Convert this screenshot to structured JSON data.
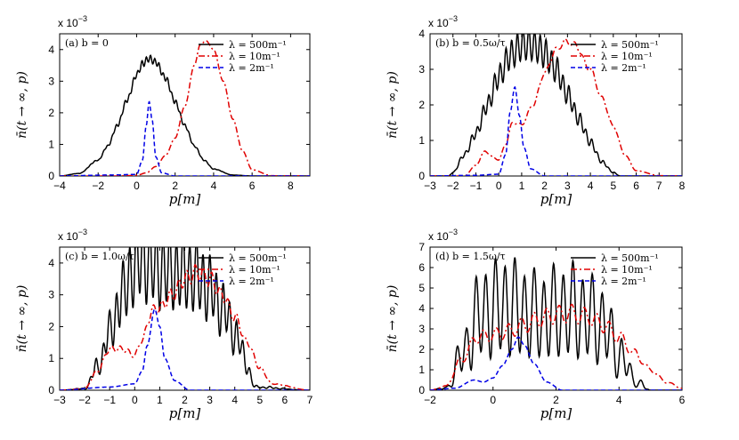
{
  "figure": {
    "xlabel": "p[m]",
    "ylabel": "n̄(t → ∞, p)",
    "scale_label": "x 10",
    "scale_exponent": "−3"
  },
  "legend_labels": [
    "λ = 500m⁻¹",
    "λ = 10m⁻¹",
    "λ = 2m⁻¹"
  ],
  "colors": {
    "black": "#000000",
    "red": "#e00000",
    "blue": "#0000e6"
  },
  "chart_data": [
    {
      "type": "line",
      "panel_label": "(a) b = 0",
      "xlim": [
        -4,
        9
      ],
      "ylim": [
        0,
        4.5
      ],
      "xticks": [
        -4,
        -2,
        0,
        2,
        4,
        6,
        8
      ],
      "yticks": [
        0,
        1,
        2,
        3,
        4
      ],
      "xticklabels": [
        "−4",
        "−2",
        "0",
        "2",
        "4",
        "6",
        "8"
      ],
      "yticklabels": [
        "0",
        "1",
        "2",
        "3",
        "4"
      ],
      "y_multiplier": "1e-3",
      "series": [
        {
          "name": "λ = 500m⁻¹",
          "style": "solid",
          "color": "#000000",
          "x": [
            -4,
            -3,
            -2,
            -1.5,
            -1,
            -0.5,
            0,
            0.3,
            0.65,
            1,
            1.5,
            2,
            2.5,
            3,
            3.5,
            4,
            5,
            6,
            9
          ],
          "y": [
            0,
            0.08,
            0.5,
            0.95,
            1.6,
            2.4,
            3.2,
            3.55,
            3.72,
            3.6,
            3.1,
            2.35,
            1.6,
            0.95,
            0.5,
            0.22,
            0.03,
            0,
            0
          ]
        },
        {
          "name": "λ = 10m⁻¹",
          "style": "dashdot",
          "color": "#e00000",
          "x": [
            -4,
            -1,
            0,
            0.5,
            1,
            1.5,
            2,
            2.5,
            3,
            3.3,
            3.6,
            4,
            4.5,
            5,
            5.5,
            6,
            7,
            9
          ],
          "y": [
            0,
            0,
            0.02,
            0.1,
            0.3,
            0.65,
            1.2,
            2.2,
            3.5,
            4.15,
            4.28,
            4.0,
            3.0,
            1.8,
            0.8,
            0.2,
            0.01,
            0
          ]
        },
        {
          "name": "λ = 2m⁻¹",
          "style": "dashed",
          "color": "#0000e6",
          "x": [
            -4,
            -1.5,
            0,
            0.3,
            0.5,
            0.65,
            0.8,
            1,
            1.3,
            2,
            9
          ],
          "y": [
            0,
            0.03,
            0.05,
            0.5,
            1.6,
            2.35,
            1.8,
            0.6,
            0.1,
            0,
            0
          ]
        }
      ]
    },
    {
      "type": "line",
      "panel_label": "(b) b = 0.5ω/τ",
      "xlim": [
        -3,
        8
      ],
      "ylim": [
        0,
        4.0
      ],
      "xticks": [
        -3,
        -2,
        -1,
        0,
        1,
        2,
        3,
        4,
        5,
        6,
        7,
        8
      ],
      "yticks": [
        0,
        1,
        2,
        3,
        4
      ],
      "xticklabels": [
        "−3",
        "−2",
        "−1",
        "0",
        "1",
        "2",
        "3",
        "4",
        "5",
        "6",
        "7",
        "8"
      ],
      "yticklabels": [
        "0",
        "1",
        "2",
        "3",
        "4"
      ],
      "y_multiplier": "1e-3",
      "series": [
        {
          "name": "λ = 500m⁻¹",
          "style": "solid",
          "color": "#000000",
          "x": [
            -3,
            -2.2,
            -2,
            -1.5,
            -1,
            -0.5,
            0,
            0.5,
            1,
            1.3,
            1.6,
            2,
            2.5,
            3,
            3.5,
            4,
            4.5,
            5,
            5.3,
            8
          ],
          "y": [
            0,
            0,
            0.1,
            0.6,
            1.2,
            2.0,
            2.8,
            3.4,
            3.68,
            3.72,
            3.65,
            3.45,
            3.0,
            2.3,
            1.6,
            0.95,
            0.4,
            0.1,
            0,
            0
          ]
        },
        {
          "name": "λ = 10m⁻¹",
          "style": "dashdot",
          "color": "#e00000",
          "x": [
            -3,
            -1.5,
            -1,
            -0.6,
            -0.3,
            0,
            0.3,
            0.6,
            1,
            1.5,
            2,
            2.5,
            2.9,
            3.3,
            4,
            4.5,
            5,
            5.5,
            6,
            7,
            8
          ],
          "y": [
            0,
            0,
            0.3,
            0.7,
            0.55,
            0.45,
            0.9,
            1.5,
            1.45,
            2.0,
            2.9,
            3.55,
            3.78,
            3.7,
            3.0,
            2.2,
            1.4,
            0.6,
            0.15,
            0.01,
            0
          ]
        },
        {
          "name": "λ = 2m⁻¹",
          "style": "dashed",
          "color": "#0000e6",
          "x": [
            -3,
            -1,
            0,
            0.3,
            0.5,
            0.7,
            0.9,
            1.1,
            1.4,
            2,
            8
          ],
          "y": [
            0,
            0.02,
            0.05,
            0.6,
            1.8,
            2.5,
            1.7,
            0.8,
            0.2,
            0,
            0
          ]
        }
      ]
    },
    {
      "type": "line",
      "panel_label": "(c) b = 1.0ω/τ",
      "xlim": [
        -3,
        7
      ],
      "ylim": [
        0,
        4.5
      ],
      "xticks": [
        -3,
        -2,
        -1,
        0,
        1,
        2,
        3,
        4,
        5,
        6,
        7
      ],
      "yticks": [
        0,
        1,
        2,
        3,
        4
      ],
      "xticklabels": [
        "−3",
        "−2",
        "−1",
        "0",
        "1",
        "2",
        "3",
        "4",
        "5",
        "6",
        "7"
      ],
      "yticklabels": [
        "0",
        "1",
        "2",
        "3",
        "4"
      ],
      "y_multiplier": "1e-3",
      "series": [
        {
          "name": "λ = 500m⁻¹",
          "style": "solid",
          "color": "#000000",
          "x": [
            -3,
            -2,
            -1.5,
            -1,
            -0.5,
            0,
            0.3,
            0.7,
            1,
            1.5,
            2,
            2.5,
            3,
            3.5,
            4,
            4.5,
            4.8,
            7
          ],
          "y": [
            0,
            0.05,
            0.7,
            1.8,
            3.0,
            3.9,
            4.2,
            3.9,
            3.8,
            3.75,
            3.7,
            3.55,
            3.2,
            2.6,
            1.8,
            0.8,
            0.1,
            0
          ]
        },
        {
          "name": "λ = 10m⁻¹",
          "style": "dashdot",
          "color": "#e00000",
          "x": [
            -3,
            -2,
            -1.5,
            -1,
            -0.5,
            0,
            0.3,
            0.7,
            1,
            1.5,
            2,
            2.5,
            3,
            3.5,
            4,
            4.5,
            5,
            5.5,
            7
          ],
          "y": [
            0,
            0.05,
            0.6,
            1.3,
            1.3,
            1.1,
            1.6,
            2.5,
            2.6,
            3.0,
            3.5,
            3.7,
            3.5,
            3.0,
            2.3,
            1.5,
            0.7,
            0.2,
            0
          ]
        },
        {
          "name": "λ = 2m⁻¹",
          "style": "dashed",
          "color": "#0000e6",
          "x": [
            -3,
            -1,
            0,
            0.3,
            0.5,
            0.8,
            1.0,
            1.2,
            1.6,
            2.2,
            7
          ],
          "y": [
            0,
            0.1,
            0.2,
            0.6,
            1.4,
            2.55,
            2.0,
            1.0,
            0.3,
            0,
            0
          ]
        }
      ]
    },
    {
      "type": "line",
      "panel_label": "(d) b = 1.5ω/τ",
      "xlim": [
        -2,
        6
      ],
      "ylim": [
        0,
        7
      ],
      "xticks": [
        -2,
        0,
        2,
        4,
        6
      ],
      "yticks": [
        0,
        1,
        2,
        3,
        4,
        5,
        6,
        7
      ],
      "xticklabels": [
        "−2",
        "0",
        "2",
        "4",
        "6"
      ],
      "yticklabels": [
        "0",
        "1",
        "2",
        "3",
        "4",
        "5",
        "6",
        "7"
      ],
      "y_multiplier": "1e-3",
      "series": [
        {
          "name": "λ = 500m⁻¹",
          "style": "solid",
          "color": "#000000",
          "x": [
            -2,
            -1.5,
            -1,
            -0.5,
            0,
            0.5,
            1,
            1.5,
            2,
            2.5,
            3,
            3.5,
            4,
            4.5,
            5,
            6
          ],
          "y": [
            0,
            0.1,
            1.6,
            3.5,
            4.0,
            4.1,
            3.8,
            3.6,
            3.8,
            3.9,
            3.6,
            3.2,
            1.8,
            0.5,
            0,
            0
          ]
        },
        {
          "name": "λ = 10m⁻¹",
          "style": "dashdot",
          "color": "#e00000",
          "x": [
            -2,
            -1.5,
            -1,
            -0.5,
            0,
            0.5,
            1,
            1.5,
            2,
            2.5,
            3,
            3.5,
            4,
            4.5,
            5,
            5.5,
            6
          ],
          "y": [
            0,
            0.2,
            1.5,
            2.6,
            2.7,
            2.9,
            3.2,
            3.5,
            3.7,
            3.75,
            3.6,
            3.2,
            2.6,
            1.8,
            1.0,
            0.4,
            0.1
          ]
        },
        {
          "name": "λ = 2m⁻¹",
          "style": "dashed",
          "color": "#0000e6",
          "x": [
            -2,
            -1.2,
            -0.6,
            -0.3,
            0,
            0.3,
            0.6,
            0.8,
            1.0,
            1.3,
            1.7,
            2.2,
            6
          ],
          "y": [
            0,
            0.1,
            0.5,
            0.4,
            0.6,
            1.2,
            2.0,
            2.6,
            2.2,
            1.3,
            0.4,
            0,
            0
          ]
        }
      ]
    }
  ]
}
